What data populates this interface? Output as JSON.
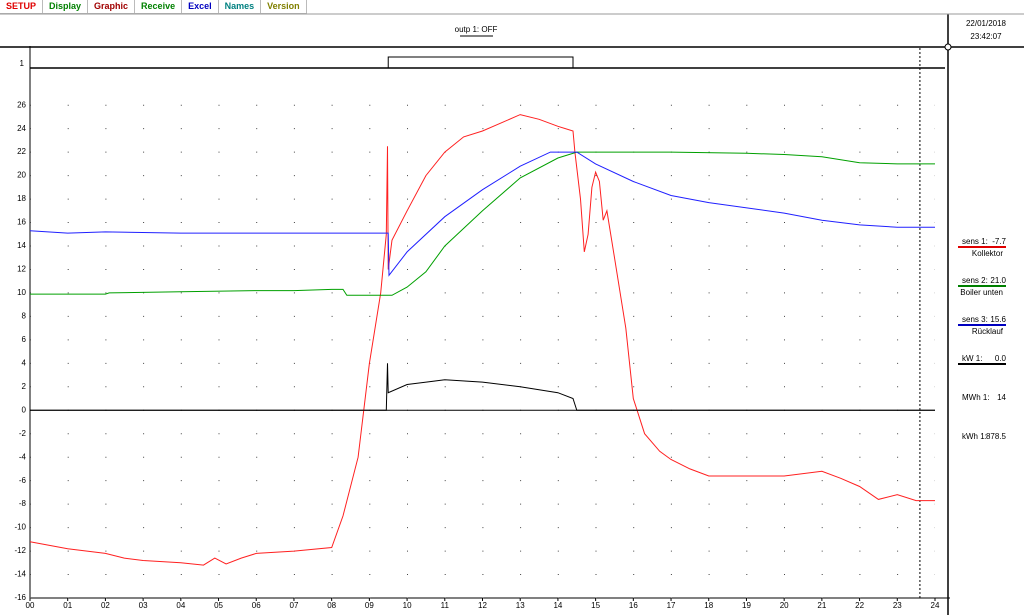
{
  "tabs": [
    {
      "label": "SETUP",
      "color": "#e00000"
    },
    {
      "label": "Display",
      "color": "#008000"
    },
    {
      "label": "Graphic",
      "color": "#a00000"
    },
    {
      "label": "Receive",
      "color": "#008000"
    },
    {
      "label": "Excel",
      "color": "#0000c0"
    },
    {
      "label": "Names",
      "color": "#008080"
    },
    {
      "label": "Version",
      "color": "#808000"
    }
  ],
  "header": {
    "output": "outp 1: OFF",
    "date": "22/01/2018",
    "time": "23:42:07"
  },
  "readings": [
    {
      "name": "sens 1:",
      "value": "-7.7",
      "label": "Kollektor",
      "color": "#e00000"
    },
    {
      "name": "sens 2:",
      "value": "21.0",
      "label": "Boiler unten",
      "color": "#008000"
    },
    {
      "name": "sens 3:",
      "value": "15.6",
      "label": "Rücklauf",
      "color": "#0000c0"
    },
    {
      "name": "kW 1:",
      "value": "0.0",
      "color": "#000000"
    },
    {
      "name": "MWh 1:",
      "value": "14"
    },
    {
      "name": "kWh 1:",
      "value": "878.5"
    }
  ],
  "chart_data": {
    "type": "line",
    "grid": "dots",
    "xlim": [
      0,
      24
    ],
    "ylim": [
      -16,
      29
    ],
    "xticks": [
      {
        "value": 0,
        "label": "00"
      },
      {
        "value": 1,
        "label": "01"
      },
      {
        "value": 2,
        "label": "02"
      },
      {
        "value": 3,
        "label": "03"
      },
      {
        "value": 4,
        "label": "04"
      },
      {
        "value": 5,
        "label": "05"
      },
      {
        "value": 6,
        "label": "06"
      },
      {
        "value": 7,
        "label": "07"
      },
      {
        "value": 8,
        "label": "08"
      },
      {
        "value": 9,
        "label": "09"
      },
      10,
      11,
      12,
      13,
      14,
      15,
      16,
      17,
      18,
      19,
      20,
      21,
      22,
      23,
      24
    ],
    "yticks": [
      -16,
      -14,
      -12,
      -10,
      -8,
      -6,
      -4,
      -2,
      0,
      2,
      4,
      6,
      8,
      10,
      12,
      14,
      16,
      18,
      20,
      22,
      24,
      26
    ],
    "cursor_x": 23.6,
    "digital": {
      "ylim": [
        0,
        1
      ],
      "yticks": [
        1
      ],
      "x": [
        0,
        9.5,
        9.5,
        14.4,
        14.4,
        24
      ],
      "values": [
        0,
        0,
        1,
        1,
        0,
        0
      ]
    },
    "series": [
      {
        "name": "sens 1",
        "color": "#ff2020",
        "x": [
          0,
          1,
          2,
          2.5,
          3,
          4,
          4.6,
          4.9,
          5.2,
          5.6,
          6,
          7,
          8,
          8.3,
          8.7,
          9,
          9.3,
          9.45,
          9.48,
          9.5,
          9.6,
          10,
          10.5,
          11,
          11.5,
          12,
          12.5,
          13,
          13.5,
          14,
          14.4,
          14.45,
          14.6,
          14.7,
          14.8,
          14.9,
          15,
          15.1,
          15.2,
          15.3,
          15.5,
          15.8,
          16,
          16.3,
          16.7,
          17,
          17.5,
          18,
          19,
          20,
          21,
          21.5,
          22,
          22.5,
          23,
          23.5,
          24
        ],
        "values": [
          -11.2,
          -11.8,
          -12.2,
          -12.6,
          -12.8,
          -13,
          -13.2,
          -12.6,
          -13.1,
          -12.6,
          -12.2,
          -12,
          -11.7,
          -9,
          -4,
          4,
          10,
          15,
          22.5,
          12,
          14.5,
          17,
          20,
          22,
          23.3,
          23.8,
          24.5,
          25.2,
          24.8,
          24.2,
          23.8,
          22,
          18,
          13.5,
          15,
          19,
          20.3,
          19.5,
          16.2,
          17,
          13,
          7,
          1,
          -2,
          -3.5,
          -4.2,
          -5,
          -5.6,
          -5.6,
          -5.6,
          -5.2,
          -5.8,
          -6.5,
          -7.6,
          -7.2,
          -7.7,
          -7.7
        ]
      },
      {
        "name": "sens 2",
        "color": "#00a000",
        "x": [
          0,
          2,
          2.1,
          4,
          6,
          7,
          8,
          8.3,
          8.4,
          9.6,
          10,
          10.5,
          11,
          12,
          13,
          14,
          14.5,
          15,
          17,
          19,
          20,
          21,
          22,
          23,
          24
        ],
        "values": [
          9.9,
          9.9,
          10,
          10.1,
          10.2,
          10.2,
          10.3,
          10.3,
          9.8,
          9.8,
          10.5,
          11.8,
          14,
          17,
          19.8,
          21.5,
          22,
          22,
          22,
          21.9,
          21.8,
          21.6,
          21.1,
          21,
          21
        ]
      },
      {
        "name": "sens 3",
        "color": "#2020ff",
        "x": [
          0,
          1,
          2,
          4,
          6,
          9,
          9.5,
          9.52,
          10,
          11,
          12,
          13,
          13.8,
          14.5,
          15,
          16,
          17,
          18,
          20,
          21,
          22,
          23,
          24
        ],
        "values": [
          15.3,
          15.1,
          15.2,
          15.1,
          15.1,
          15.1,
          15.1,
          11.5,
          13.5,
          16.5,
          18.8,
          20.8,
          22,
          22,
          21,
          19.5,
          18.3,
          17.7,
          16.8,
          16.2,
          15.8,
          15.6,
          15.6
        ]
      },
      {
        "name": "kW 1",
        "color": "#000000",
        "x": [
          0,
          9.45,
          9.48,
          9.5,
          10,
          11,
          12,
          13,
          14,
          14.4,
          14.5,
          24
        ],
        "values": [
          0,
          0,
          4,
          1.5,
          2.2,
          2.6,
          2.4,
          2,
          1.5,
          1,
          0,
          0
        ]
      }
    ]
  }
}
